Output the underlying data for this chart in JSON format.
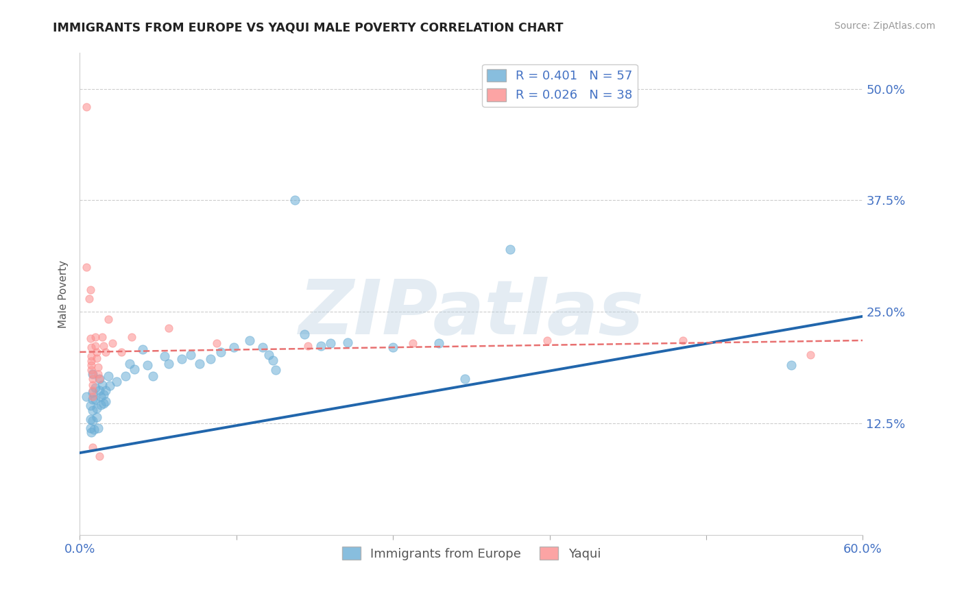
{
  "title": "IMMIGRANTS FROM EUROPE VS YAQUI MALE POVERTY CORRELATION CHART",
  "source": "Source: ZipAtlas.com",
  "ylabel": "Male Poverty",
  "xlim": [
    0.0,
    0.6
  ],
  "ylim": [
    0.0,
    0.54
  ],
  "yticks": [
    0.0,
    0.125,
    0.25,
    0.375,
    0.5
  ],
  "ytick_labels": [
    "",
    "12.5%",
    "25.0%",
    "37.5%",
    "50.0%"
  ],
  "xticks": [
    0.0,
    0.12,
    0.24,
    0.36,
    0.48,
    0.6
  ],
  "xtick_labels": [
    "0.0%",
    "",
    "",
    "",
    "",
    "60.0%"
  ],
  "legend_r1": "R = 0.401   N = 57",
  "legend_r2": "R = 0.026   N = 38",
  "legend_bottom1": "Immigrants from Europe",
  "legend_bottom2": "Yaqui",
  "blue_scatter": [
    [
      0.005,
      0.155
    ],
    [
      0.008,
      0.145
    ],
    [
      0.008,
      0.13
    ],
    [
      0.008,
      0.12
    ],
    [
      0.009,
      0.115
    ],
    [
      0.01,
      0.18
    ],
    [
      0.01,
      0.16
    ],
    [
      0.01,
      0.152
    ],
    [
      0.01,
      0.14
    ],
    [
      0.01,
      0.128
    ],
    [
      0.011,
      0.118
    ],
    [
      0.012,
      0.165
    ],
    [
      0.012,
      0.152
    ],
    [
      0.013,
      0.142
    ],
    [
      0.013,
      0.132
    ],
    [
      0.014,
      0.12
    ],
    [
      0.015,
      0.175
    ],
    [
      0.015,
      0.162
    ],
    [
      0.016,
      0.155
    ],
    [
      0.016,
      0.146
    ],
    [
      0.017,
      0.168
    ],
    [
      0.018,
      0.157
    ],
    [
      0.018,
      0.147
    ],
    [
      0.02,
      0.162
    ],
    [
      0.02,
      0.15
    ],
    [
      0.022,
      0.178
    ],
    [
      0.023,
      0.167
    ],
    [
      0.028,
      0.172
    ],
    [
      0.035,
      0.178
    ],
    [
      0.038,
      0.192
    ],
    [
      0.042,
      0.186
    ],
    [
      0.048,
      0.208
    ],
    [
      0.052,
      0.19
    ],
    [
      0.056,
      0.178
    ],
    [
      0.065,
      0.2
    ],
    [
      0.068,
      0.192
    ],
    [
      0.078,
      0.197
    ],
    [
      0.085,
      0.202
    ],
    [
      0.092,
      0.192
    ],
    [
      0.1,
      0.197
    ],
    [
      0.108,
      0.205
    ],
    [
      0.118,
      0.21
    ],
    [
      0.13,
      0.218
    ],
    [
      0.14,
      0.21
    ],
    [
      0.145,
      0.202
    ],
    [
      0.148,
      0.196
    ],
    [
      0.15,
      0.185
    ],
    [
      0.165,
      0.375
    ],
    [
      0.172,
      0.225
    ],
    [
      0.185,
      0.212
    ],
    [
      0.192,
      0.215
    ],
    [
      0.205,
      0.216
    ],
    [
      0.24,
      0.21
    ],
    [
      0.275,
      0.215
    ],
    [
      0.295,
      0.175
    ],
    [
      0.33,
      0.32
    ],
    [
      0.545,
      0.19
    ]
  ],
  "pink_scatter": [
    [
      0.005,
      0.48
    ],
    [
      0.005,
      0.3
    ],
    [
      0.007,
      0.265
    ],
    [
      0.008,
      0.22
    ],
    [
      0.008,
      0.275
    ],
    [
      0.009,
      0.21
    ],
    [
      0.009,
      0.2
    ],
    [
      0.009,
      0.195
    ],
    [
      0.009,
      0.19
    ],
    [
      0.009,
      0.185
    ],
    [
      0.01,
      0.18
    ],
    [
      0.01,
      0.175
    ],
    [
      0.01,
      0.168
    ],
    [
      0.01,
      0.162
    ],
    [
      0.01,
      0.155
    ],
    [
      0.01,
      0.098
    ],
    [
      0.012,
      0.222
    ],
    [
      0.012,
      0.212
    ],
    [
      0.013,
      0.205
    ],
    [
      0.013,
      0.198
    ],
    [
      0.014,
      0.188
    ],
    [
      0.014,
      0.18
    ],
    [
      0.015,
      0.175
    ],
    [
      0.015,
      0.088
    ],
    [
      0.017,
      0.222
    ],
    [
      0.018,
      0.212
    ],
    [
      0.02,
      0.205
    ],
    [
      0.022,
      0.242
    ],
    [
      0.025,
      0.215
    ],
    [
      0.032,
      0.205
    ],
    [
      0.04,
      0.222
    ],
    [
      0.068,
      0.232
    ],
    [
      0.105,
      0.215
    ],
    [
      0.175,
      0.212
    ],
    [
      0.255,
      0.215
    ],
    [
      0.358,
      0.218
    ],
    [
      0.462,
      0.218
    ],
    [
      0.56,
      0.202
    ]
  ],
  "blue_line": [
    [
      0.0,
      0.092
    ],
    [
      0.6,
      0.245
    ]
  ],
  "pink_line": [
    [
      0.0,
      0.205
    ],
    [
      0.6,
      0.218
    ]
  ],
  "background_color": "#ffffff",
  "grid_color": "#cccccc",
  "title_color": "#222222",
  "tick_color": "#4472c4",
  "watermark": "ZIPatlas",
  "blue_color": "#6baed6",
  "pink_color": "#fc8d8d",
  "blue_line_color": "#2166ac",
  "pink_line_color": "#e87070",
  "blue_marker_size": 90,
  "pink_marker_size": 65
}
